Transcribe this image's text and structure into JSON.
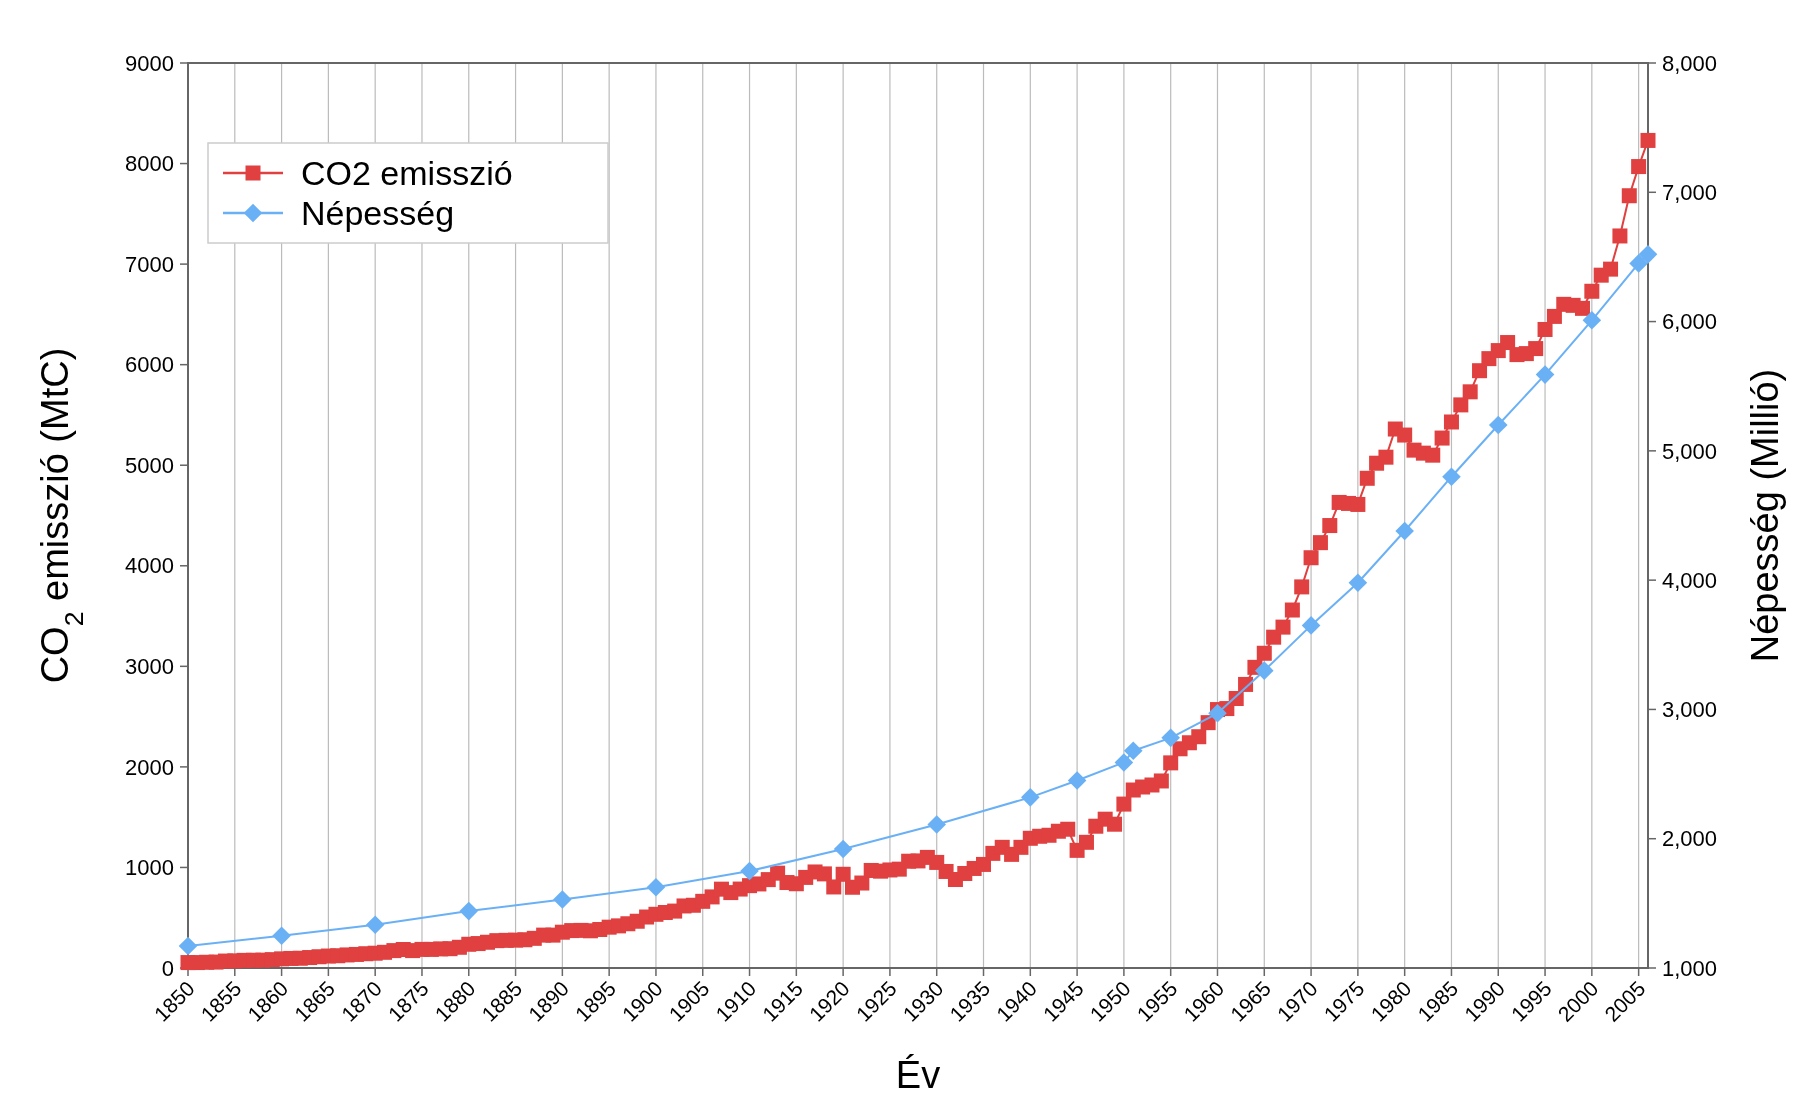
{
  "chart_data": {
    "type": "line",
    "xlabel": "Év",
    "ylabel": "CO$_{2}$ emisszió (MtC)",
    "y2label": "Népesség (Millió)",
    "xlim": [
      1850,
      2006
    ],
    "xticks": [
      1850,
      1855,
      1860,
      1865,
      1870,
      1875,
      1880,
      1885,
      1890,
      1895,
      1900,
      1905,
      1910,
      1915,
      1920,
      1925,
      1930,
      1935,
      1940,
      1945,
      1950,
      1955,
      1960,
      1965,
      1970,
      1975,
      1980,
      1985,
      1990,
      1995,
      2000,
      2005
    ],
    "ylim": [
      0,
      9000
    ],
    "yticks": [
      0,
      1000,
      2000,
      3000,
      4000,
      5000,
      6000,
      7000,
      8000,
      9000
    ],
    "y2lim": [
      1000,
      8000
    ],
    "y2ticks": [
      {
        "value": 1000,
        "label": "1,000"
      },
      {
        "value": 2000,
        "label": "2,000"
      },
      {
        "value": 3000,
        "label": "3,000"
      },
      {
        "value": 4000,
        "label": "4,000"
      },
      {
        "value": 5000,
        "label": "5,000"
      },
      {
        "value": 6000,
        "label": "6,000"
      },
      {
        "value": 7000,
        "label": "7,000"
      },
      {
        "value": 8000,
        "label": "8,000"
      }
    ],
    "grid": "x",
    "legend": "top left",
    "series": [
      {
        "name": "CO2 emisszió",
        "color": "#e04040",
        "marker": "square",
        "x": [
          1850,
          1851,
          1852,
          1853,
          1854,
          1855,
          1856,
          1857,
          1858,
          1859,
          1860,
          1861,
          1862,
          1863,
          1864,
          1865,
          1866,
          1867,
          1868,
          1869,
          1870,
          1871,
          1872,
          1873,
          1874,
          1875,
          1876,
          1877,
          1878,
          1879,
          1880,
          1881,
          1882,
          1883,
          1884,
          1885,
          1886,
          1887,
          1888,
          1889,
          1890,
          1891,
          1892,
          1893,
          1894,
          1895,
          1896,
          1897,
          1898,
          1899,
          1900,
          1901,
          1902,
          1903,
          1904,
          1905,
          1906,
          1907,
          1908,
          1909,
          1910,
          1911,
          1912,
          1913,
          1914,
          1915,
          1916,
          1917,
          1918,
          1919,
          1920,
          1921,
          1922,
          1923,
          1924,
          1925,
          1926,
          1927,
          1928,
          1929,
          1930,
          1931,
          1932,
          1933,
          1934,
          1935,
          1936,
          1937,
          1938,
          1939,
          1940,
          1941,
          1942,
          1943,
          1944,
          1945,
          1946,
          1947,
          1948,
          1949,
          1950,
          1951,
          1952,
          1953,
          1954,
          1955,
          1956,
          1957,
          1958,
          1959,
          1960,
          1961,
          1962,
          1963,
          1964,
          1965,
          1966,
          1967,
          1968,
          1969,
          1970,
          1971,
          1972,
          1973,
          1974,
          1975,
          1976,
          1977,
          1978,
          1979,
          1980,
          1981,
          1982,
          1983,
          1984,
          1985,
          1986,
          1987,
          1988,
          1989,
          1990,
          1991,
          1992,
          1993,
          1994,
          1995,
          1996,
          1997,
          1998,
          1999,
          2000,
          2001,
          2002,
          2003,
          2004,
          2005,
          2006
        ],
        "values": [
          54,
          54,
          57,
          59,
          69,
          71,
          76,
          77,
          78,
          83,
          91,
          95,
          97,
          104,
          112,
          119,
          122,
          130,
          135,
          142,
          147,
          156,
          173,
          184,
          173,
          185,
          185,
          190,
          192,
          206,
          236,
          243,
          256,
          272,
          275,
          277,
          281,
          295,
          327,
          327,
          356,
          372,
          374,
          370,
          383,
          406,
          419,
          440,
          465,
          507,
          534,
          552,
          566,
          617,
          624,
          663,
          707,
          784,
          750,
          785,
          819,
          836,
          879,
          943,
          850,
          838,
          901,
          955,
          936,
          806,
          932,
          803,
          845,
          970,
          963,
          975,
          983,
          1062,
          1065,
          1100,
          1050,
          960,
          880,
          940,
          990,
          1030,
          1140,
          1200,
          1130,
          1200,
          1290,
          1310,
          1320,
          1360,
          1380,
          1170,
          1250,
          1410,
          1480,
          1430,
          1630,
          1770,
          1800,
          1820,
          1860,
          2040,
          2180,
          2240,
          2300,
          2440,
          2570,
          2580,
          2680,
          2820,
          2990,
          3130,
          3290,
          3390,
          3560,
          3790,
          4080,
          4230,
          4400,
          4630,
          4620,
          4610,
          4870,
          5020,
          5080,
          5360,
          5300,
          5150,
          5120,
          5100,
          5270,
          5430,
          5600,
          5730,
          5940,
          6060,
          6140,
          6220,
          6100,
          6110,
          6160,
          6350,
          6480,
          6600,
          6590,
          6560,
          6730,
          6890,
          6950,
          7280,
          7680,
          7970,
          8230
        ]
      },
      {
        "name": "Népesség",
        "color": "#6ab0f5",
        "marker": "diamond",
        "axis": "y2",
        "x": [
          1850,
          1860,
          1870,
          1880,
          1890,
          1900,
          1910,
          1920,
          1930,
          1940,
          1945,
          1950,
          1951,
          1955,
          1960,
          1965,
          1970,
          1975,
          1980,
          1985,
          1990,
          1995,
          2000,
          2005,
          2006
        ],
        "values": [
          1170,
          1250,
          1335,
          1440,
          1530,
          1625,
          1750,
          1920,
          2110,
          2320,
          2450,
          2590,
          2680,
          2780,
          2970,
          3300,
          3650,
          3980,
          4380,
          4800,
          5200,
          5590,
          6010,
          6450,
          6520
        ]
      }
    ]
  }
}
